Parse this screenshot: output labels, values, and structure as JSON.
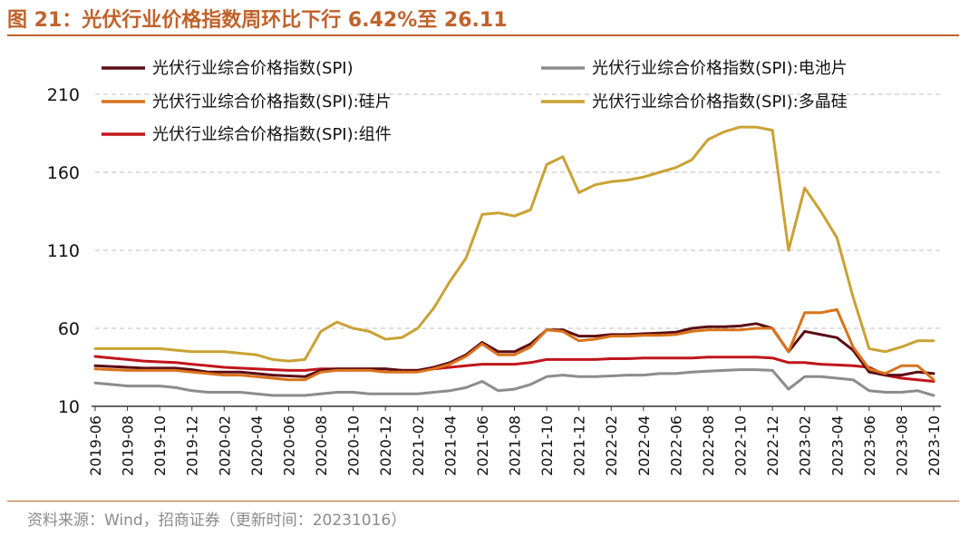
{
  "figure": {
    "title": "图 21：光伏行业价格指数周环比下行 6.42%至 26.11",
    "source": "资料来源：Wind，招商证券（更新时间：20231016）"
  },
  "chart_data": {
    "type": "line",
    "title": "光伏行业价格指数周环比下行 6.42%至 26.11",
    "xlabel": "",
    "ylabel": "",
    "ylim": [
      10,
      210
    ],
    "yticks": [
      "210",
      "160",
      "110",
      "60",
      "10"
    ],
    "grid": "horizontal dashed",
    "legend_position": "top",
    "x": [
      "2019-06",
      "2019-07",
      "2019-08",
      "2019-09",
      "2019-10",
      "2019-11",
      "2019-12",
      "2020-01",
      "2020-02",
      "2020-03",
      "2020-04",
      "2020-05",
      "2020-06",
      "2020-07",
      "2020-08",
      "2020-09",
      "2020-10",
      "2020-11",
      "2020-12",
      "2021-01",
      "2021-02",
      "2021-03",
      "2021-04",
      "2021-05",
      "2021-06",
      "2021-07",
      "2021-08",
      "2021-09",
      "2021-10",
      "2021-11",
      "2021-12",
      "2022-01",
      "2022-02",
      "2022-03",
      "2022-04",
      "2022-05",
      "2022-06",
      "2022-07",
      "2022-08",
      "2022-09",
      "2022-10",
      "2022-11",
      "2022-12",
      "2023-01",
      "2023-02",
      "2023-03",
      "2023-04",
      "2023-05",
      "2023-06",
      "2023-07",
      "2023-08",
      "2023-09",
      "2023-10"
    ],
    "xticks": [
      "2019-06",
      "2019-08",
      "2019-10",
      "2019-12",
      "2020-02",
      "2020-04",
      "2020-06",
      "2020-08",
      "2020-10",
      "2020-12",
      "2021-02",
      "2021-04",
      "2021-06",
      "2021-08",
      "2021-10",
      "2021-12",
      "2022-02",
      "2022-04",
      "2022-06",
      "2022-08",
      "2022-10",
      "2022-12",
      "2023-02",
      "2023-04",
      "2023-06",
      "2023-08",
      "2023-10"
    ],
    "series": [
      {
        "name": "光伏行业综合价格指数(SPI)",
        "color": "#5c0d14",
        "values": [
          36,
          35.5,
          35,
          34.5,
          34.5,
          34.5,
          33.5,
          32,
          32,
          32,
          31,
          30,
          29.5,
          29,
          33,
          34,
          34,
          34,
          34,
          33,
          33,
          35,
          38,
          43,
          51,
          45,
          45,
          50,
          59,
          59,
          55,
          55,
          56,
          56,
          56.5,
          57,
          57.5,
          60,
          61,
          61,
          61.5,
          63,
          60,
          45,
          58,
          56,
          54,
          46,
          32,
          30,
          30,
          32,
          31
        ]
      },
      {
        "name": "光伏行业综合价格指数(SPI):电池片",
        "color": "#8c8c8c",
        "values": [
          25,
          24,
          23,
          23,
          23,
          22,
          20,
          19,
          19,
          19,
          18,
          17,
          17,
          17,
          18,
          19,
          19,
          18,
          18,
          18,
          18,
          19,
          20,
          22,
          26,
          20,
          21,
          24,
          29,
          30,
          29,
          29,
          29.5,
          30,
          30,
          31,
          31,
          32,
          32.5,
          33,
          33.5,
          33.5,
          33,
          21,
          29,
          29,
          28,
          27,
          20,
          19,
          19,
          20,
          17
        ]
      },
      {
        "name": "光伏行业综合价格指数(SPI):硅片",
        "color": "#d9731c",
        "values": [
          34,
          33.5,
          33,
          33,
          33,
          33,
          32,
          31,
          30,
          30,
          29,
          28,
          27,
          27,
          32,
          33,
          33,
          33,
          32,
          32,
          32,
          34,
          37,
          42,
          50,
          43,
          43,
          48,
          59,
          58,
          52,
          53,
          55,
          55,
          55.5,
          55.5,
          56,
          58,
          59,
          59,
          59,
          60,
          60,
          45,
          70,
          70,
          72,
          48,
          34,
          31,
          36,
          36,
          27
        ]
      },
      {
        "name": "光伏行业综合价格指数(SPI):多晶硅",
        "color": "#c9a233",
        "values": [
          47,
          47,
          47,
          47,
          47,
          46,
          45,
          45,
          45,
          44,
          43,
          40,
          39,
          40,
          58,
          64,
          60,
          58,
          53,
          54,
          60,
          73,
          90,
          105,
          133,
          134,
          132,
          136,
          165,
          170,
          147,
          152,
          154,
          155,
          157,
          160,
          163,
          168,
          181,
          186,
          189,
          189,
          187,
          110,
          150,
          135,
          118,
          80,
          47,
          45,
          48,
          52,
          52
        ]
      },
      {
        "name": "光伏行业综合价格指数(SPI):组件",
        "color": "#c0151b",
        "values": [
          42,
          41,
          40,
          39,
          38.5,
          38,
          37,
          36,
          35,
          34.5,
          34,
          33.5,
          33,
          33,
          34,
          34,
          34,
          34,
          34,
          33,
          33,
          34,
          35,
          36,
          37,
          37,
          37,
          38,
          40,
          40,
          40,
          40,
          40.5,
          40.5,
          41,
          41,
          41,
          41,
          41.5,
          41.5,
          41.5,
          41.5,
          41,
          38,
          38,
          37,
          36.5,
          36,
          35,
          30,
          28,
          27,
          26
        ]
      }
    ]
  }
}
